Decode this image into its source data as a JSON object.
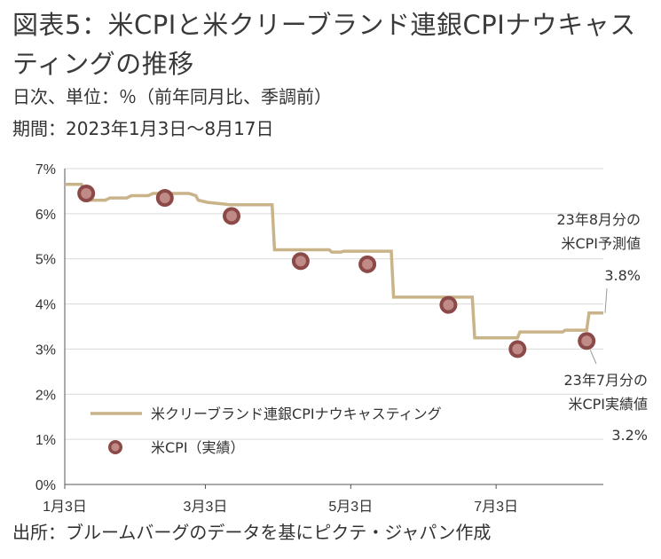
{
  "header": {
    "title": "図表5：米CPIと米クリーブランド連銀CPIナウキャスティングの推移",
    "subtitle_units": "日次、単位：％（前年同月比、季調前）",
    "subtitle_period": "期間：2023年1月3日～8月17日"
  },
  "footer": {
    "source": "出所：ブルームバーグのデータを基にピクテ・ジャパン作成"
  },
  "chart_data": {
    "type": "line",
    "title": "",
    "xlabel": "",
    "ylabel": "",
    "x_range": [
      "2023-01-03",
      "2023-08-17"
    ],
    "x_tick_labels": [
      {
        "date": "2023-01-03",
        "label": "1月3日"
      },
      {
        "date": "2023-03-03",
        "label": "3月3日"
      },
      {
        "date": "2023-05-03",
        "label": "5月3日"
      },
      {
        "date": "2023-07-03",
        "label": "7月3日"
      }
    ],
    "ylim": [
      0,
      7
    ],
    "y_ticks": [
      {
        "value": 0,
        "label": "0%"
      },
      {
        "value": 1,
        "label": "1%"
      },
      {
        "value": 2,
        "label": "2%"
      },
      {
        "value": 3,
        "label": "3%"
      },
      {
        "value": 4,
        "label": "4%"
      },
      {
        "value": 5,
        "label": "5%"
      },
      {
        "value": 6,
        "label": "6%"
      },
      {
        "value": 7,
        "label": "7%"
      }
    ],
    "grid": {
      "horizontal": true,
      "vertical": false
    },
    "legend_placement": "lower-left",
    "series": [
      {
        "name": "米クリーブランド連銀CPIナウキャスティング",
        "style": "step-line",
        "color": "#c9b48a",
        "points": [
          [
            "2023-01-03",
            6.65
          ],
          [
            "2023-01-10",
            6.65
          ],
          [
            "2023-01-13",
            6.3
          ],
          [
            "2023-01-20",
            6.3
          ],
          [
            "2023-01-22",
            6.35
          ],
          [
            "2023-01-29",
            6.35
          ],
          [
            "2023-01-31",
            6.4
          ],
          [
            "2023-02-07",
            6.4
          ],
          [
            "2023-02-09",
            6.45
          ],
          [
            "2023-02-24",
            6.45
          ],
          [
            "2023-02-27",
            6.4
          ],
          [
            "2023-02-28",
            6.3
          ],
          [
            "2023-03-04",
            6.25
          ],
          [
            "2023-03-10",
            6.22
          ],
          [
            "2023-03-13",
            6.2
          ],
          [
            "2023-03-31",
            6.2
          ],
          [
            "2023-04-01",
            5.2
          ],
          [
            "2023-04-24",
            5.2
          ],
          [
            "2023-04-25",
            5.15
          ],
          [
            "2023-04-29",
            5.15
          ],
          [
            "2023-04-30",
            5.17
          ],
          [
            "2023-05-20",
            5.17
          ],
          [
            "2023-05-21",
            4.15
          ],
          [
            "2023-06-23",
            4.15
          ],
          [
            "2023-06-24",
            3.25
          ],
          [
            "2023-07-12",
            3.25
          ],
          [
            "2023-07-13",
            3.38
          ],
          [
            "2023-07-31",
            3.38
          ],
          [
            "2023-08-01",
            3.42
          ],
          [
            "2023-08-10",
            3.42
          ],
          [
            "2023-08-11",
            3.8
          ],
          [
            "2023-08-17",
            3.8
          ]
        ]
      },
      {
        "name": "米CPI（実績）",
        "style": "markers",
        "color": "#8b4a48",
        "points": [
          [
            "2023-01-12",
            6.45
          ],
          [
            "2023-02-14",
            6.35
          ],
          [
            "2023-03-14",
            5.95
          ],
          [
            "2023-04-12",
            4.95
          ],
          [
            "2023-05-10",
            4.88
          ],
          [
            "2023-06-13",
            3.98
          ],
          [
            "2023-07-12",
            3.0
          ],
          [
            "2023-08-10",
            3.18
          ]
        ]
      }
    ],
    "annotations": {
      "forecast_lines": [
        "23年8月分の",
        "米CPI予測値",
        "3.8%"
      ],
      "actual_lines": [
        "23年7月分の",
        "米CPI実績値",
        "3.2%"
      ]
    }
  }
}
